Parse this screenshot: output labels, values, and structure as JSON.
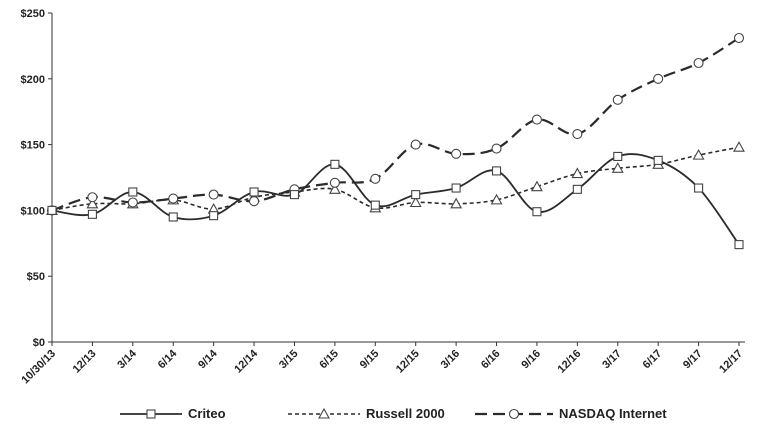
{
  "chart_data": {
    "type": "line",
    "title": "",
    "xlabel": "",
    "ylabel": "",
    "ylim": [
      0,
      250
    ],
    "yticks": [
      "$0",
      "$50",
      "$100",
      "$150",
      "$200",
      "$250"
    ],
    "ytick_values": [
      0,
      50,
      100,
      150,
      200,
      250
    ],
    "categories": [
      "10/30/13",
      "12/13",
      "3/14",
      "6/14",
      "9/14",
      "12/14",
      "3/15",
      "6/15",
      "9/15",
      "12/15",
      "3/16",
      "6/16",
      "9/16",
      "12/16",
      "3/17",
      "6/17",
      "9/17",
      "12/17"
    ],
    "series": [
      {
        "name": "Criteo",
        "marker": "square",
        "dash": "solid",
        "values": [
          100,
          97,
          114,
          95,
          96,
          114,
          112,
          135,
          104,
          112,
          117,
          130,
          99,
          116,
          141,
          138,
          117,
          74
        ]
      },
      {
        "name": "Russell 2000",
        "marker": "triangle",
        "dash": "short",
        "values": [
          100,
          105,
          105,
          108,
          101,
          110,
          114,
          116,
          102,
          106,
          105,
          108,
          118,
          128,
          132,
          135,
          142,
          148
        ]
      },
      {
        "name": "NASDAQ Internet",
        "marker": "circle",
        "dash": "long",
        "values": [
          100,
          110,
          106,
          109,
          112,
          107,
          116,
          121,
          124,
          150,
          143,
          147,
          169,
          158,
          184,
          200,
          212,
          231
        ]
      }
    ],
    "legend_position": "bottom"
  }
}
